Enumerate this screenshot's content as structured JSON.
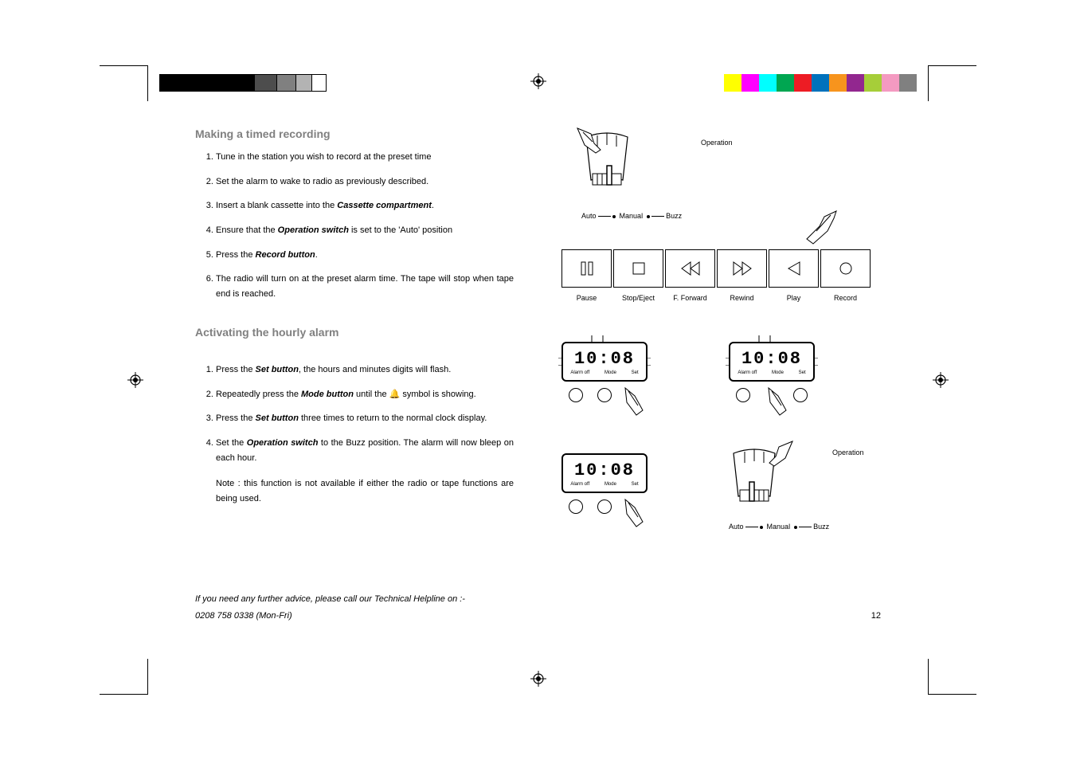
{
  "colorBars": {
    "left": [
      "#000000",
      "#000000",
      "#000000",
      "#000000",
      "#4d4d4d",
      "#808080",
      "#b3b3b3",
      "#ffffff"
    ],
    "leftWidths": [
      30,
      30,
      30,
      30,
      28,
      24,
      20,
      18
    ],
    "right": [
      "#ffff00",
      "#ff00ff",
      "#00ffff",
      "#00a651",
      "#ed1c24",
      "#0072bc",
      "#f7941d",
      "#92278f",
      "#a6ce39",
      "#f49ac1",
      "#808080"
    ],
    "rightWidths": [
      22,
      22,
      22,
      22,
      22,
      22,
      22,
      22,
      22,
      22,
      22
    ]
  },
  "section1": {
    "heading": "Making a timed recording",
    "items": [
      {
        "pre": "Tune in the station you wish to record at the preset time",
        "bold": "",
        "post": ""
      },
      {
        "pre": "Set the alarm to wake to radio as previously described.",
        "bold": "",
        "post": ""
      },
      {
        "pre": "Insert a blank cassette into the ",
        "bold": "Cassette compartment",
        "post": "."
      },
      {
        "pre": "Ensure that the ",
        "bold": "Operation switch",
        "post": " is set to the 'Auto' position"
      },
      {
        "pre": "Press the ",
        "bold": "Record button",
        "post": "."
      },
      {
        "pre": "The radio will turn on at the preset alarm time. The tape will stop when tape end is reached.",
        "bold": "",
        "post": ""
      }
    ]
  },
  "section2": {
    "heading": "Activating the hourly alarm",
    "items": [
      {
        "pre": "Press the ",
        "bold": "Set button",
        "post": ", the hours and minutes digits will flash."
      },
      {
        "pre": "Repeatedly press the ",
        "bold": "Mode button",
        "post": " until the 🔔 symbol is showing."
      },
      {
        "pre": "Press the ",
        "bold": "Set button",
        "post": " three times to return to the normal clock display."
      },
      {
        "pre": "Set the ",
        "bold": "Operation switch",
        "post": " to the  Buzz position.  The alarm will now bleep on each hour."
      }
    ],
    "note": "Note : this function is not available if either the radio or tape functions are being used."
  },
  "footer": {
    "line1": "If you need any further advice, please call our Technical Helpline on :-",
    "line2": "0208 758 0338 (Mon-Fri)"
  },
  "pageNumber": "12",
  "diagrams": {
    "operationLabel": "Operation",
    "switchPositions": {
      "auto": "Auto",
      "manual": "Manual",
      "buzz": "Buzz"
    },
    "cassetteButtons": [
      "Pause",
      "Stop/Eject",
      "F. Forward",
      "Rewind",
      "Play",
      "Record"
    ],
    "clockTime": "10:08",
    "clockLabels": {
      "alarmOff": "Alarm off",
      "mode": "Mode",
      "set": "Set"
    }
  },
  "style": {
    "headingColor": "#808080",
    "bodyFontSize": 11,
    "diagramFontSize": 9,
    "pageWidth": 1351,
    "pageHeight": 954
  }
}
